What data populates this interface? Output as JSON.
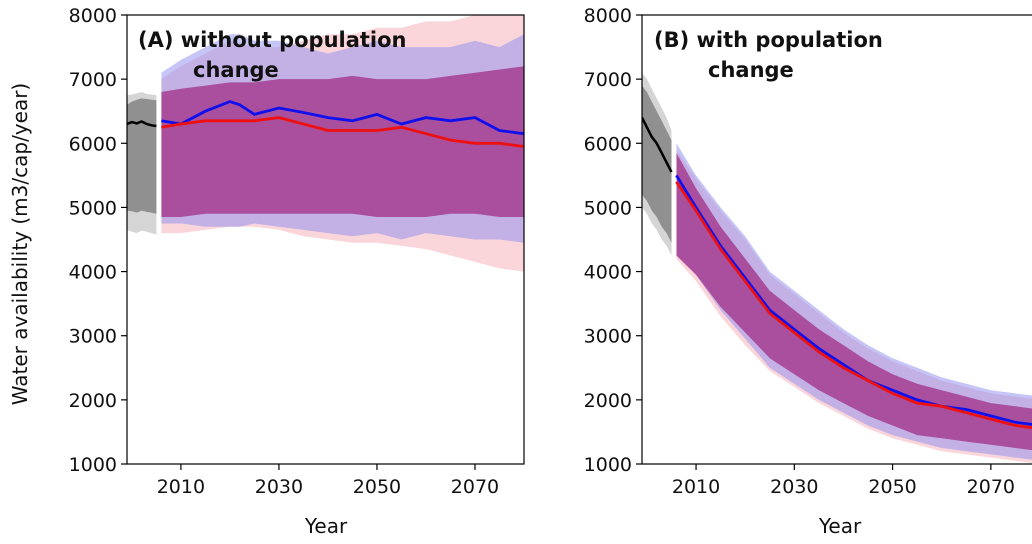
{
  "colors": {
    "historical": "#000000",
    "historical_band": "#888888",
    "without_policy": "#1010ee",
    "with_policy": "#ee1010",
    "band_blue": "#8c8cf0",
    "band_red": "#f3a3b0",
    "band_overlap": "#a84a9a",
    "axis": "#000000",
    "background": "#ffffff"
  },
  "chart_data": [
    {
      "type": "line",
      "panel": "A",
      "title_line1": "(A) without population",
      "title_line2": "change",
      "xlabel": "Year",
      "ylabel": "Water availability (m3/cap/year)",
      "xlim": [
        1999,
        2080
      ],
      "ylim": [
        1000,
        8000
      ],
      "xticks": [
        "2010",
        "2030",
        "2050",
        "2070"
      ],
      "yticks": [
        "1000",
        "2000",
        "3000",
        "4000",
        "5000",
        "6000",
        "7000",
        "8000"
      ],
      "historical": {
        "x": [
          1999,
          2000,
          2001,
          2002,
          2003,
          2004,
          2005
        ],
        "y": [
          6300,
          6330,
          6310,
          6340,
          6300,
          6280,
          6270
        ],
        "band_low": [
          4650,
          4620,
          4600,
          4640,
          4620,
          4600,
          4580
        ],
        "band_high": [
          6750,
          6760,
          6780,
          6800,
          6770,
          6760,
          6750
        ],
        "inner_low": [
          4950,
          4940,
          4920,
          4950,
          4930,
          4920,
          4900
        ],
        "inner_high": [
          6600,
          6650,
          6680,
          6700,
          6690,
          6680,
          6670
        ]
      },
      "series": [
        {
          "color_key": "without_policy",
          "x": [
            2006,
            2010,
            2015,
            2020,
            2022,
            2025,
            2030,
            2035,
            2040,
            2045,
            2050,
            2055,
            2060,
            2065,
            2070,
            2075,
            2080
          ],
          "y": [
            6350,
            6300,
            6500,
            6650,
            6600,
            6450,
            6550,
            6480,
            6400,
            6350,
            6450,
            6300,
            6400,
            6350,
            6400,
            6200,
            6150
          ],
          "band_low": [
            4750,
            4750,
            4700,
            4700,
            4700,
            4750,
            4700,
            4650,
            4600,
            4550,
            4600,
            4500,
            4600,
            4550,
            4500,
            4500,
            4450
          ],
          "band_high": [
            7100,
            7300,
            7500,
            7700,
            7700,
            7600,
            7600,
            7500,
            7400,
            7500,
            7600,
            7500,
            7500,
            7500,
            7600,
            7500,
            7700
          ]
        },
        {
          "color_key": "with_policy",
          "x": [
            2006,
            2010,
            2015,
            2020,
            2025,
            2030,
            2035,
            2040,
            2045,
            2050,
            2055,
            2060,
            2065,
            2070,
            2075,
            2080
          ],
          "y": [
            6250,
            6300,
            6350,
            6350,
            6350,
            6400,
            6300,
            6200,
            6200,
            6200,
            6250,
            6150,
            6050,
            6000,
            6000,
            5950
          ],
          "band_low": [
            4600,
            4600,
            4650,
            4700,
            4700,
            4650,
            4550,
            4500,
            4450,
            4450,
            4400,
            4350,
            4250,
            4150,
            4050,
            4000
          ],
          "band_high": [
            7000,
            7200,
            7400,
            7600,
            7500,
            7500,
            7600,
            7700,
            7700,
            7800,
            7800,
            7900,
            7900,
            8000,
            8000,
            8000
          ]
        }
      ],
      "overlap_band": {
        "x": [
          2006,
          2010,
          2015,
          2020,
          2025,
          2030,
          2035,
          2040,
          2045,
          2050,
          2055,
          2060,
          2065,
          2070,
          2075,
          2080
        ],
        "low": [
          4850,
          4850,
          4900,
          4900,
          4900,
          4900,
          4900,
          4900,
          4900,
          4850,
          4850,
          4850,
          4900,
          4900,
          4850,
          4850
        ],
        "high": [
          6800,
          6850,
          6900,
          6950,
          6950,
          7000,
          7000,
          7000,
          7050,
          7000,
          7000,
          7000,
          7050,
          7100,
          7150,
          7200
        ]
      }
    },
    {
      "type": "line",
      "panel": "B",
      "title_line1": "(B) with population",
      "title_line2": "change",
      "xlabel": "Year",
      "ylabel": "",
      "xlim": [
        1999,
        2080
      ],
      "ylim": [
        1000,
        8000
      ],
      "xticks": [
        "2010",
        "2030",
        "2050",
        "2070"
      ],
      "yticks": [
        "1000",
        "2000",
        "3000",
        "4000",
        "5000",
        "6000",
        "7000",
        "8000"
      ],
      "historical": {
        "x": [
          1999,
          2000,
          2001,
          2002,
          2003,
          2004,
          2005
        ],
        "y": [
          6400,
          6250,
          6100,
          6000,
          5850,
          5700,
          5550
        ],
        "band_low": [
          5000,
          4900,
          4750,
          4650,
          4500,
          4400,
          4250
        ],
        "band_high": [
          7100,
          7000,
          6850,
          6700,
          6550,
          6400,
          6200
        ],
        "inner_low": [
          5200,
          5100,
          4950,
          4850,
          4700,
          4600,
          4450
        ],
        "inner_high": [
          6900,
          6800,
          6650,
          6500,
          6350,
          6200,
          6050
        ]
      },
      "series": [
        {
          "color_key": "without_policy",
          "x": [
            2006,
            2010,
            2015,
            2020,
            2025,
            2030,
            2035,
            2040,
            2045,
            2050,
            2055,
            2060,
            2065,
            2070,
            2075,
            2080
          ],
          "y": [
            5500,
            5000,
            4400,
            3900,
            3400,
            3100,
            2800,
            2550,
            2300,
            2150,
            2000,
            1900,
            1850,
            1750,
            1650,
            1600
          ],
          "band_low": [
            4300,
            3950,
            3400,
            2950,
            2500,
            2250,
            2000,
            1800,
            1600,
            1450,
            1350,
            1250,
            1200,
            1150,
            1100,
            1050
          ],
          "band_high": [
            6000,
            5500,
            5000,
            4550,
            4000,
            3700,
            3400,
            3100,
            2850,
            2650,
            2500,
            2350,
            2250,
            2150,
            2100,
            2050
          ]
        },
        {
          "color_key": "with_policy",
          "x": [
            2006,
            2010,
            2015,
            2020,
            2025,
            2030,
            2035,
            2040,
            2045,
            2050,
            2055,
            2060,
            2065,
            2070,
            2075,
            2080
          ],
          "y": [
            5400,
            4950,
            4350,
            3850,
            3350,
            3050,
            2750,
            2500,
            2300,
            2100,
            1950,
            1900,
            1800,
            1700,
            1600,
            1550
          ],
          "band_low": [
            4200,
            3850,
            3300,
            2850,
            2450,
            2200,
            1950,
            1750,
            1550,
            1400,
            1300,
            1200,
            1150,
            1100,
            1050,
            1000
          ],
          "band_high": [
            5900,
            5450,
            4950,
            4500,
            3950,
            3650,
            3350,
            3050,
            2800,
            2600,
            2450,
            2300,
            2200,
            2100,
            2050,
            2000
          ]
        }
      ],
      "overlap_band": {
        "x": [
          2006,
          2010,
          2015,
          2020,
          2025,
          2030,
          2035,
          2040,
          2045,
          2050,
          2055,
          2060,
          2065,
          2070,
          2075,
          2080
        ],
        "low": [
          4250,
          3950,
          3450,
          3050,
          2650,
          2400,
          2150,
          1950,
          1750,
          1600,
          1450,
          1400,
          1350,
          1300,
          1250,
          1200
        ],
        "high": [
          5850,
          5300,
          4700,
          4200,
          3700,
          3400,
          3100,
          2850,
          2600,
          2400,
          2250,
          2150,
          2050,
          1950,
          1900,
          1850
        ]
      }
    }
  ]
}
